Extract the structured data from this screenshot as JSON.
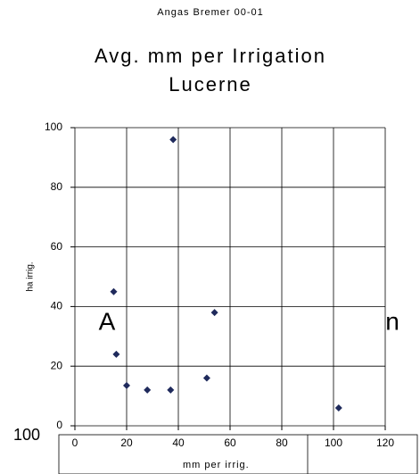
{
  "chart_data": {
    "type": "scatter",
    "subtitle": "Angas Bremer 00-01",
    "title": [
      "Avg. mm per Irrigation",
      "Lucerne"
    ],
    "x_label": "mm per irrig.",
    "y_label": "ha irrig.",
    "series": [
      {
        "name": "ha irrig.",
        "color": "#1f2a5c",
        "x": [
          15,
          16,
          20,
          28,
          37,
          38,
          51,
          54,
          102
        ],
        "values": [
          45,
          24,
          13.5,
          12,
          12,
          96,
          16,
          38,
          6
        ]
      }
    ],
    "xlim": [
      0,
      120
    ],
    "xticks": [
      0,
      20,
      40,
      60,
      80,
      100,
      120
    ],
    "ylim": [
      0,
      100
    ],
    "yticks": [
      0,
      20,
      40,
      60,
      80,
      100
    ],
    "grid": true,
    "annotations": [
      "A",
      "n",
      "100"
    ]
  }
}
